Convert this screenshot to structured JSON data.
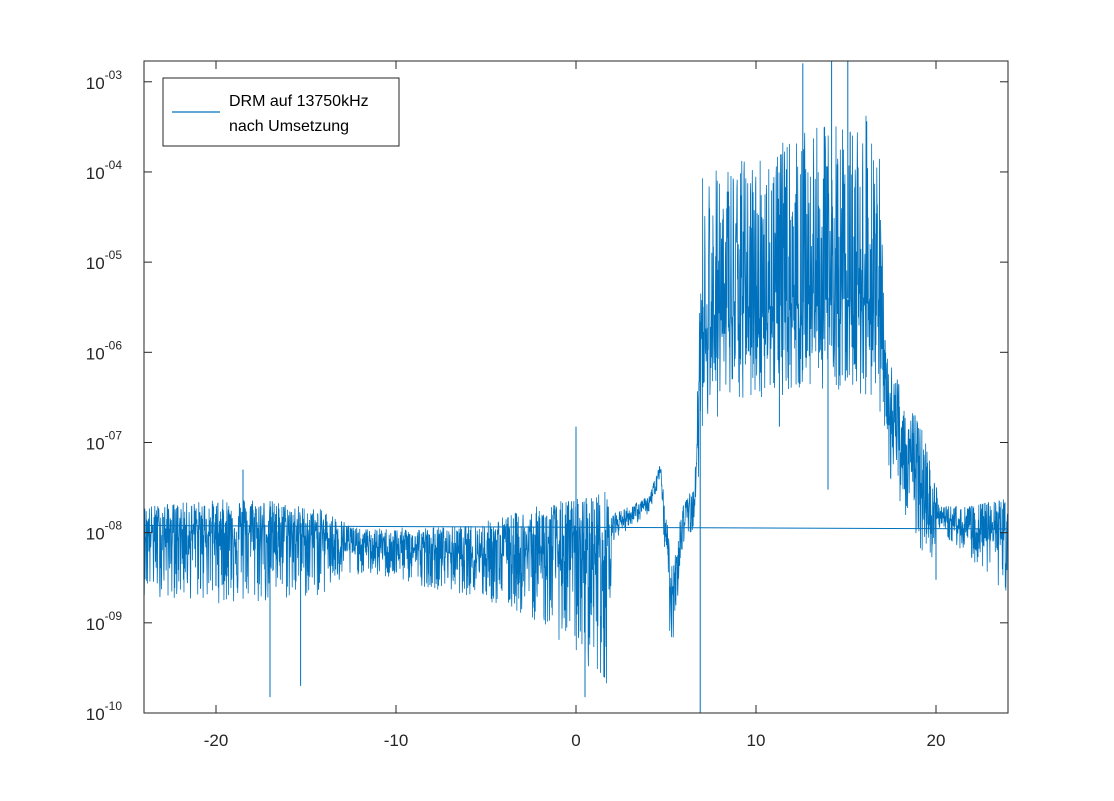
{
  "chart_data": {
    "type": "line",
    "title": "",
    "xlabel": "",
    "ylabel": "",
    "xlim": [
      -24,
      24
    ],
    "ylim": [
      1e-10,
      0.0017
    ],
    "yscale": "log",
    "grid": false,
    "legend_position": "top-left",
    "x_ticks": [
      {
        "value": -20,
        "label": "-20"
      },
      {
        "value": -10,
        "label": "-10"
      },
      {
        "value": 0,
        "label": "0"
      },
      {
        "value": 10,
        "label": "10"
      },
      {
        "value": 20,
        "label": "20"
      }
    ],
    "y_ticks": [
      {
        "value": 1e-10,
        "base": "10",
        "exp": "-10"
      },
      {
        "value": 1e-09,
        "base": "10",
        "exp": "-09"
      },
      {
        "value": 1e-08,
        "base": "10",
        "exp": "-08"
      },
      {
        "value": 1e-07,
        "base": "10",
        "exp": "-07"
      },
      {
        "value": 1e-06,
        "base": "10",
        "exp": "-06"
      },
      {
        "value": 1e-05,
        "base": "10",
        "exp": "-05"
      },
      {
        "value": 0.0001,
        "base": "10",
        "exp": "-04"
      },
      {
        "value": 0.001,
        "base": "10",
        "exp": "-03"
      }
    ],
    "legend": [
      "DRM auf 13750kHz",
      "nach Umsetzung"
    ],
    "series": [
      {
        "color": "#0072bd",
        "envelope": [
          {
            "x": -24,
            "median": 1e-08,
            "upper": 2e-08,
            "lower": 2e-09
          },
          {
            "x": -18,
            "median": 1e-08,
            "upper": 2.5e-08,
            "lower": 1.5e-09
          },
          {
            "x": -14,
            "median": 9e-09,
            "upper": 1.8e-08,
            "lower": 2e-09
          },
          {
            "x": -12,
            "median": 7e-09,
            "upper": 1.1e-08,
            "lower": 3.5e-09
          },
          {
            "x": -6,
            "median": 6e-09,
            "upper": 1.2e-08,
            "lower": 2e-09
          },
          {
            "x": -2,
            "median": 6e-09,
            "upper": 2e-08,
            "lower": 1e-09
          },
          {
            "x": 1.8,
            "median": 6e-09,
            "upper": 3e-08,
            "lower": 2e-10
          },
          {
            "x": 2.0,
            "median": 1.2e-08,
            "upper": 1.6e-08,
            "lower": 8e-09
          },
          {
            "x": 4.0,
            "median": 2e-08,
            "upper": 2.5e-08,
            "lower": 1.6e-08
          },
          {
            "x": 4.7,
            "median": 4.5e-08,
            "upper": 6e-08,
            "lower": 3e-08
          },
          {
            "x": 5.3,
            "median": 2e-09,
            "upper": 5e-09,
            "lower": 4e-10
          },
          {
            "x": 6.0,
            "median": 1.5e-08,
            "upper": 2.5e-08,
            "lower": 8e-09
          },
          {
            "x": 6.6,
            "median": 2e-08,
            "upper": 3e-08,
            "lower": 1e-08
          },
          {
            "x": 7.0,
            "median": 2e-06,
            "upper": 0.0001,
            "lower": 1.5e-07
          },
          {
            "x": 10,
            "median": 3e-06,
            "upper": 0.00016,
            "lower": 3e-07
          },
          {
            "x": 14,
            "median": 4e-06,
            "upper": 0.00035,
            "lower": 4e-07
          },
          {
            "x": 16.8,
            "median": 4e-06,
            "upper": 0.00045,
            "lower": 3e-07
          },
          {
            "x": 17.2,
            "median": 2e-07,
            "upper": 1e-06,
            "lower": 5e-08
          },
          {
            "x": 19.6,
            "median": 2e-08,
            "upper": 1e-07,
            "lower": 4e-09
          },
          {
            "x": 20.2,
            "median": 1.5e-08,
            "upper": 2e-08,
            "lower": 1e-08
          },
          {
            "x": 22,
            "median": 1e-08,
            "upper": 2e-08,
            "lower": 5e-09
          },
          {
            "x": 24,
            "median": 1e-08,
            "upper": 2.5e-08,
            "lower": 2e-09
          }
        ],
        "spikes": [
          {
            "x": -17.0,
            "y": 1.5e-10
          },
          {
            "x": -15.3,
            "y": 2e-10
          },
          {
            "x": -18.5,
            "y": 5e-08
          },
          {
            "x": 0.0,
            "y": 1.5e-07
          },
          {
            "x": 0.5,
            "y": 1.5e-10
          },
          {
            "x": 6.9,
            "y": 1e-10
          },
          {
            "x": 12.6,
            "y": 0.0016
          },
          {
            "x": 14.2,
            "y": 0.0017
          },
          {
            "x": 15.1,
            "y": 0.0017
          },
          {
            "x": 14.0,
            "y": 3e-08
          },
          {
            "x": 11.3,
            "y": 1.5e-07
          },
          {
            "x": 20.0,
            "y": 3e-09
          }
        ],
        "baseline": [
          {
            "x": -24,
            "y": 1.2e-08
          },
          {
            "x": 24,
            "y": 1.1e-08
          }
        ]
      }
    ]
  }
}
